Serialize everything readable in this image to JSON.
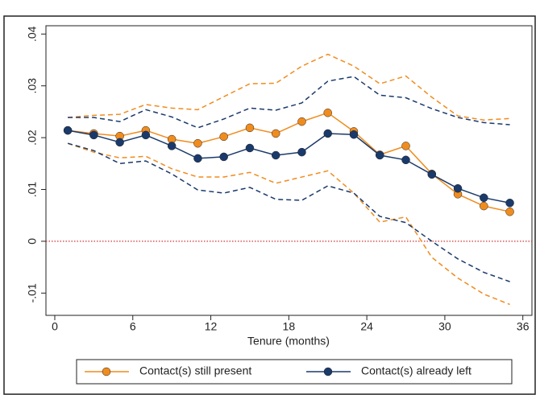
{
  "chart_data": {
    "type": "line",
    "x_label": "Tenure (months)",
    "x": [
      1,
      3,
      5,
      7,
      9,
      11,
      13,
      15,
      17,
      19,
      21,
      23,
      25,
      27,
      29,
      31,
      33,
      35
    ],
    "series": [
      {
        "name": "Contact(s) still present",
        "color": "#f08c1e",
        "values": [
          0.0214,
          0.0208,
          0.0203,
          0.0214,
          0.0197,
          0.0189,
          0.0202,
          0.0219,
          0.0208,
          0.0231,
          0.0248,
          0.0212,
          0.0167,
          0.0184,
          0.013,
          0.0091,
          0.0068,
          0.0057
        ],
        "upper": [
          0.0239,
          0.0243,
          0.0245,
          0.0264,
          0.0257,
          0.0254,
          0.0279,
          0.0304,
          0.0305,
          0.0338,
          0.0361,
          0.0338,
          0.0304,
          0.0319,
          0.0278,
          0.0242,
          0.0234,
          0.0237
        ],
        "lower": [
          0.0189,
          0.0172,
          0.0161,
          0.0164,
          0.014,
          0.0124,
          0.0124,
          0.0133,
          0.0112,
          0.0124,
          0.0136,
          0.0093,
          0.0037,
          0.0047,
          -0.0031,
          -0.0071,
          -0.0102,
          -0.0122
        ]
      },
      {
        "name": "Contact(s) already left",
        "color": "#1a3a6b",
        "values": [
          0.0214,
          0.0205,
          0.0191,
          0.0205,
          0.0184,
          0.016,
          0.0163,
          0.018,
          0.0166,
          0.0172,
          0.0208,
          0.0206,
          0.0166,
          0.0157,
          0.0129,
          0.0102,
          0.0084,
          0.0074
        ],
        "upper": [
          0.0239,
          0.0239,
          0.0231,
          0.0254,
          0.024,
          0.0219,
          0.0236,
          0.0257,
          0.0253,
          0.0267,
          0.0309,
          0.0318,
          0.0282,
          0.0277,
          0.0256,
          0.0239,
          0.0229,
          0.0225
        ],
        "lower": [
          0.0189,
          0.0175,
          0.015,
          0.0155,
          0.013,
          0.0099,
          0.0093,
          0.0104,
          0.0081,
          0.0079,
          0.0107,
          0.0093,
          0.0048,
          0.0036,
          0,
          -0.0034,
          -0.006,
          -0.0078
        ]
      }
    ],
    "xlim": [
      -0.68,
      36.7
    ],
    "xticks": [
      0,
      6,
      12,
      18,
      24,
      30,
      36
    ],
    "ylim": [
      -0.0143,
      0.0416
    ],
    "yticks": [
      {
        "value": -0.01,
        "label": "-.01"
      },
      0,
      {
        "value": 0.01,
        "label": ".01"
      },
      {
        "value": 0.02,
        "label": ".02"
      },
      {
        "value": 0.03,
        "label": ".03"
      },
      {
        "value": 0.04,
        "label": ".04"
      }
    ],
    "reference_line": {
      "value": 0,
      "color": "#d03030"
    },
    "legend": "bottom"
  }
}
